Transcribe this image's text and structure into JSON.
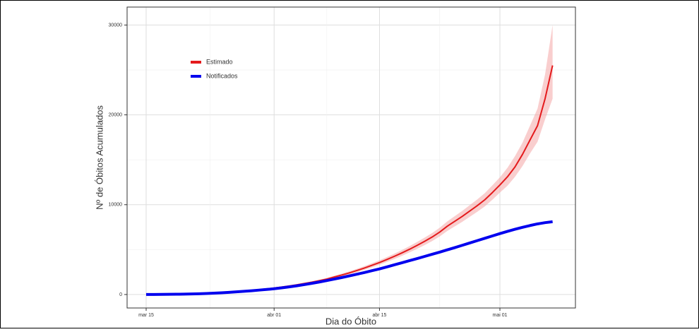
{
  "chart_data": {
    "type": "line",
    "xlabel": "Dia do Óbito",
    "ylabel": "Nº de Óbitos Acumulados",
    "categories": [
      "mar 15",
      null,
      null,
      null,
      null,
      null,
      null,
      null,
      null,
      null,
      null,
      null,
      null,
      null,
      null,
      null,
      null,
      "abr 01",
      null,
      null,
      null,
      null,
      null,
      null,
      null,
      null,
      null,
      null,
      null,
      null,
      null,
      "abr 15",
      null,
      null,
      null,
      null,
      null,
      null,
      null,
      null,
      null,
      null,
      null,
      null,
      null,
      null,
      null,
      "mai 01",
      null,
      null,
      null,
      null,
      null,
      null,
      null
    ],
    "series": [
      {
        "name": "Estimado",
        "color": "#e41a1c",
        "width": 2,
        "values": [
          0,
          0,
          10,
          20,
          30,
          40,
          60,
          90,
          120,
          160,
          210,
          260,
          320,
          390,
          460,
          540,
          620,
          720,
          830,
          950,
          1080,
          1220,
          1370,
          1540,
          1720,
          1950,
          2170,
          2410,
          2670,
          2950,
          3250,
          3560,
          3900,
          4260,
          4640,
          5040,
          5470,
          5920,
          6400,
          6950,
          7600,
          8150,
          8700,
          9300,
          9900,
          10550,
          11350,
          12200,
          13100,
          14200,
          15600,
          17200,
          18800,
          21800,
          25500
        ],
        "band": {
          "color": "#f4a6a6",
          "lower": [
            0,
            0,
            10,
            20,
            30,
            40,
            60,
            90,
            120,
            160,
            210,
            260,
            320,
            390,
            460,
            520,
            590,
            680,
            780,
            890,
            1010,
            1140,
            1280,
            1430,
            1600,
            1810,
            2020,
            2240,
            2480,
            2740,
            3020,
            3310,
            3630,
            3960,
            4310,
            4690,
            5090,
            5500,
            5950,
            6460,
            7070,
            7580,
            8090,
            8650,
            9210,
            9810,
            10550,
            11350,
            12100,
            13100,
            14300,
            15700,
            17000,
            19500,
            21800
          ],
          "upper": [
            0,
            0,
            10,
            20,
            30,
            40,
            60,
            90,
            120,
            160,
            210,
            260,
            320,
            390,
            460,
            560,
            650,
            760,
            880,
            1010,
            1150,
            1300,
            1460,
            1650,
            1840,
            2090,
            2320,
            2580,
            2860,
            3160,
            3480,
            3810,
            4170,
            4560,
            4960,
            5390,
            5850,
            6330,
            6850,
            7440,
            8130,
            8720,
            9310,
            9950,
            10590,
            11290,
            12150,
            13050,
            14100,
            15400,
            16900,
            18800,
            20700,
            24500,
            30000
          ]
        }
      },
      {
        "name": "Notificados",
        "color": "#0000ee",
        "width": 4,
        "values": [
          0,
          0,
          10,
          20,
          30,
          40,
          60,
          80,
          110,
          150,
          190,
          240,
          300,
          360,
          420,
          490,
          560,
          640,
          740,
          850,
          970,
          1100,
          1240,
          1390,
          1550,
          1720,
          1890,
          2070,
          2260,
          2450,
          2650,
          2850,
          3080,
          3310,
          3540,
          3770,
          4000,
          4240,
          4480,
          4720,
          4970,
          5220,
          5480,
          5740,
          6000,
          6260,
          6520,
          6780,
          7030,
          7260,
          7480,
          7680,
          7860,
          8000,
          8100
        ]
      }
    ],
    "ylim": [
      -1500,
      32000
    ],
    "yticks": [
      0,
      10000,
      20000,
      30000
    ],
    "grid": true,
    "legend": "top-left"
  }
}
